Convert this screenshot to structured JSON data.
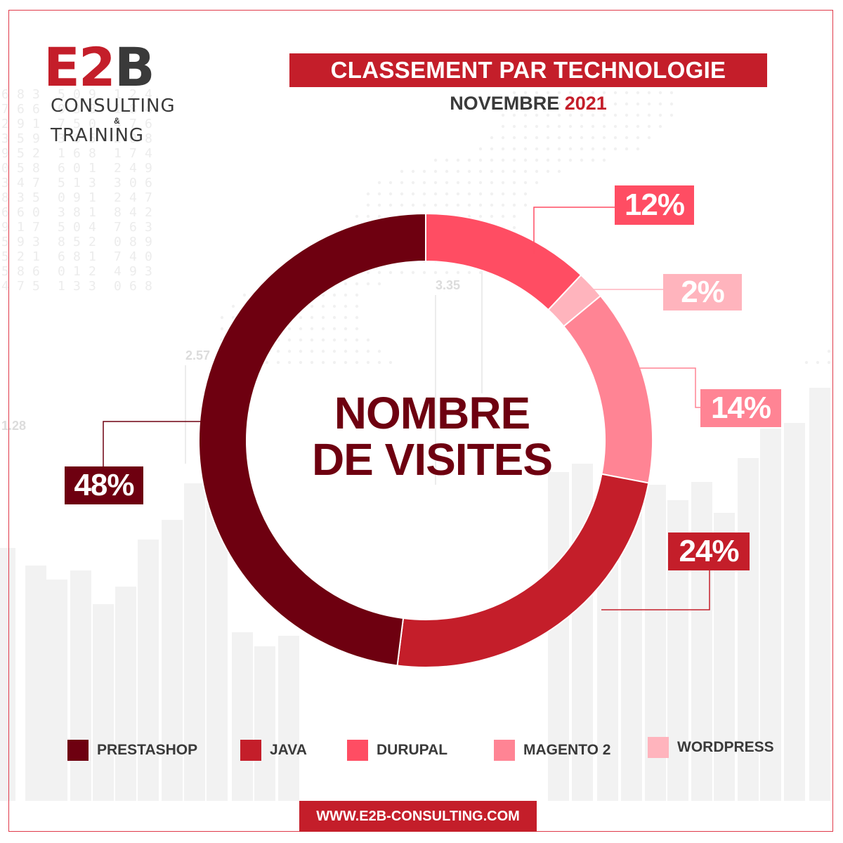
{
  "logo": {
    "mark_left": "E2",
    "mark_right": "B",
    "line1": "CONSULTING",
    "amp": "&",
    "line2": "TRAINING"
  },
  "header": {
    "title": "CLASSEMENT PAR TECHNOLOGIE",
    "month": "NOVEMBRE",
    "year": "2021"
  },
  "background_numbers": [
    "3.35",
    "2.57",
    "1.28"
  ],
  "chart_data": {
    "type": "pie",
    "center_label_line1": "NOMBRE",
    "center_label_line2": "DE VISITES",
    "series": [
      {
        "name": "PRESTASHOP",
        "value": 48,
        "label": "48%",
        "color": "#6e0010"
      },
      {
        "name": "JAVA",
        "value": 24,
        "label": "24%",
        "color": "#c41e2a"
      },
      {
        "name": "DURUPAL",
        "value": 12,
        "label": "12%",
        "color": "#ff4d63"
      },
      {
        "name": "MAGENTO 2",
        "value": 14,
        "label": "14%",
        "color": "#ff8494"
      },
      {
        "name": "WORDPRESS",
        "value": 2,
        "label": "2%",
        "color": "#ffb4bd"
      }
    ],
    "draw_order": [
      "DURUPAL",
      "WORDPRESS",
      "MAGENTO 2",
      "JAVA",
      "PRESTASHOP"
    ],
    "legend_position": "bottom"
  },
  "footer": {
    "url": "WWW.E2B-CONSULTING.COM"
  },
  "colors": {
    "brand_red": "#c41e2a",
    "dark_text": "#3a3a3a"
  }
}
